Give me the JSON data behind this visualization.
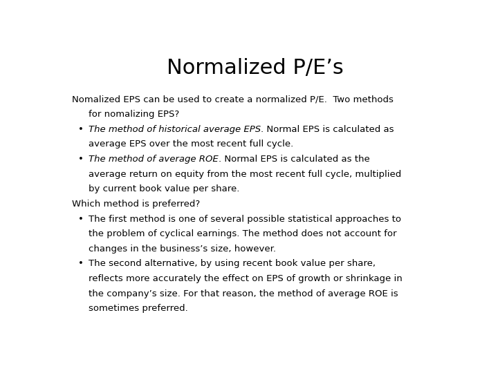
{
  "title": "Normalized P/E’s",
  "background_color": "#ffffff",
  "text_color": "#000000",
  "title_fontsize": 22,
  "body_fontsize": 9.5,
  "content_lines": [
    {
      "type": "para",
      "indent": 0,
      "parts": [
        {
          "style": "normal",
          "text": "Nomalized EPS can be used to create a normalized P/E.  Two methods"
        }
      ]
    },
    {
      "type": "para",
      "indent": 1,
      "parts": [
        {
          "style": "normal",
          "text": "for nomalizing EPS?"
        }
      ]
    },
    {
      "type": "bullet",
      "indent": 0,
      "parts": [
        {
          "style": "italic",
          "text": "The method of historical average EPS"
        },
        {
          "style": "normal",
          "text": ". Normal EPS is calculated as"
        }
      ]
    },
    {
      "type": "cont",
      "indent": 1,
      "parts": [
        {
          "style": "normal",
          "text": "average EPS over the most recent full cycle."
        }
      ]
    },
    {
      "type": "bullet",
      "indent": 0,
      "parts": [
        {
          "style": "italic",
          "text": "The method of average ROE"
        },
        {
          "style": "normal",
          "text": ". Normal EPS is calculated as the"
        }
      ]
    },
    {
      "type": "cont",
      "indent": 1,
      "parts": [
        {
          "style": "normal",
          "text": "average return on equity from the most recent full cycle, multiplied"
        }
      ]
    },
    {
      "type": "cont",
      "indent": 1,
      "parts": [
        {
          "style": "normal",
          "text": "by current book value per share."
        }
      ]
    },
    {
      "type": "para",
      "indent": 0,
      "parts": [
        {
          "style": "normal",
          "text": "Which method is preferred?"
        }
      ]
    },
    {
      "type": "bullet",
      "indent": 0,
      "parts": [
        {
          "style": "normal",
          "text": "The first method is one of several possible statistical approaches to"
        }
      ]
    },
    {
      "type": "cont",
      "indent": 1,
      "parts": [
        {
          "style": "normal",
          "text": "the problem of cyclical earnings. The method does not account for"
        }
      ]
    },
    {
      "type": "cont",
      "indent": 1,
      "parts": [
        {
          "style": "normal",
          "text": "changes in the business’s size, however."
        }
      ]
    },
    {
      "type": "bullet",
      "indent": 0,
      "parts": [
        {
          "style": "normal",
          "text": "The second alternative, by using recent book value per share,"
        }
      ]
    },
    {
      "type": "cont",
      "indent": 1,
      "parts": [
        {
          "style": "normal",
          "text": "reflects more accurately the effect on EPS of growth or shrinkage in"
        }
      ]
    },
    {
      "type": "cont",
      "indent": 1,
      "parts": [
        {
          "style": "normal",
          "text": "the company’s size. For that reason, the method of average ROE is"
        }
      ]
    },
    {
      "type": "cont",
      "indent": 1,
      "parts": [
        {
          "style": "normal",
          "text": "sometimes preferred."
        }
      ]
    }
  ]
}
